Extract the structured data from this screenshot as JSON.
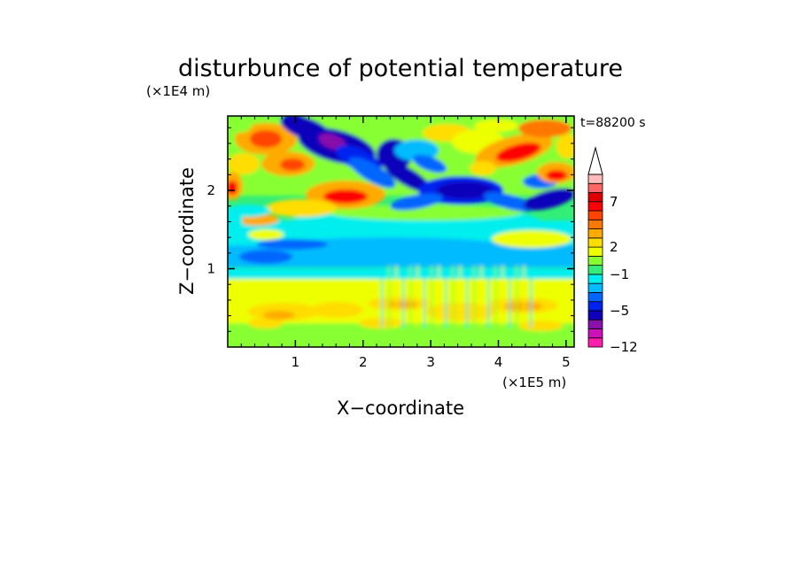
{
  "chart_data": {
    "type": "heatmap",
    "title": "disturbunce of potential temperature",
    "xlabel": "X−coordinate",
    "ylabel": "Z−coordinate",
    "x_unit": "(×1E5 m)",
    "y_unit": "(×1E4 m)",
    "time_label": "t=88200 s",
    "xlim": [
      0,
      5.12
    ],
    "ylim": [
      0,
      2.95
    ],
    "x_ticks": [
      {
        "value": 1,
        "label": "1"
      },
      {
        "value": 2,
        "label": "2"
      },
      {
        "value": 3,
        "label": "3"
      },
      {
        "value": 4,
        "label": "4"
      },
      {
        "value": 5,
        "label": "5"
      }
    ],
    "y_ticks": [
      {
        "value": 1,
        "label": "1"
      },
      {
        "value": 2,
        "label": "2"
      }
    ],
    "colorbar": {
      "levels": [
        -12,
        -10,
        -8,
        -6,
        -5,
        -4,
        -3,
        -2,
        -1,
        0,
        1,
        2,
        3,
        4,
        5,
        6,
        7,
        8,
        9,
        10
      ],
      "colors": [
        "#ff1faa",
        "#cc11bb",
        "#8811aa",
        "#1100bb",
        "#0022ee",
        "#0066ff",
        "#00bbff",
        "#00eeee",
        "#33ee77",
        "#88ff33",
        "#eeff00",
        "#ffdd00",
        "#ffaa00",
        "#ff7700",
        "#ff4400",
        "#ff0000",
        "#dd0000",
        "#ff6666",
        "#ffbbbb"
      ],
      "labeled_levels": [
        {
          "value": 7,
          "label": "7"
        },
        {
          "value": 2,
          "label": "2"
        },
        {
          "value": -1,
          "label": "−1"
        },
        {
          "value": -5,
          "label": "−5"
        },
        {
          "value": -12,
          "label": "−12"
        }
      ],
      "extend": "max"
    },
    "legend_position": "right"
  }
}
